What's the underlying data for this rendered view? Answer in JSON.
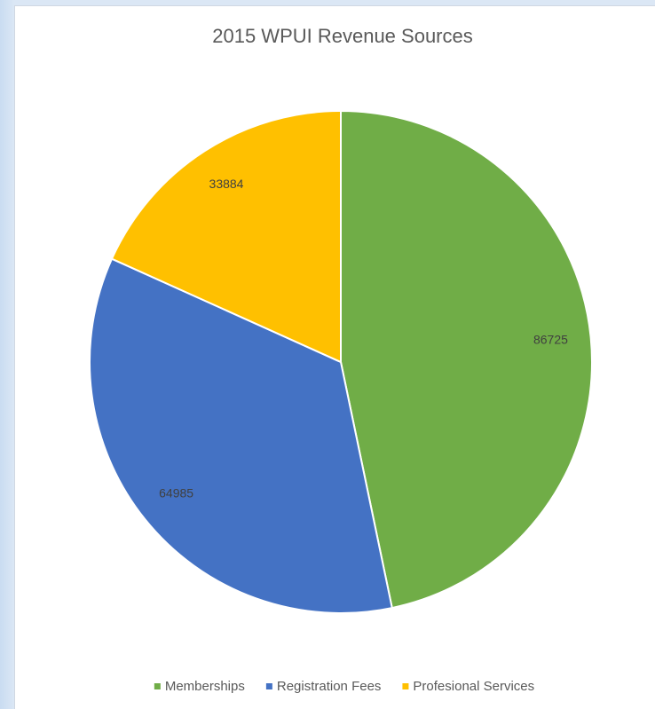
{
  "chart_data": {
    "type": "pie",
    "title": "2015 WPUI Revenue Sources",
    "categories": [
      "Memberships",
      "Registration Fees",
      "Profesional Services"
    ],
    "values": [
      86725,
      64985,
      33884
    ],
    "colors": [
      "#70ad47",
      "#4472c4",
      "#ffc000"
    ],
    "legend": "bottom"
  }
}
